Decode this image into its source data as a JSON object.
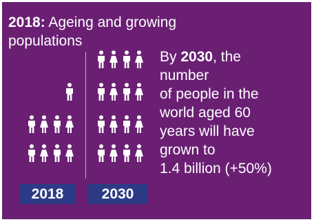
{
  "title": {
    "year": "2018:",
    "text": "Ageing and growing populations"
  },
  "years": {
    "left": "2018",
    "right": "2030"
  },
  "stat": {
    "prefix": "By ",
    "year": "2030",
    "line1": ", the",
    "line2": "number",
    "line3": "of people in the",
    "line4": "world aged 60",
    "line5": "years will have",
    "line6": "grown to",
    "line7": "1.4 billion (+50%)"
  },
  "people": {
    "count_2018": 9,
    "count_2030": 16
  },
  "colors": {
    "background": "#6a1f73",
    "badge": "#2d3b86",
    "icon": "#ffffff"
  }
}
